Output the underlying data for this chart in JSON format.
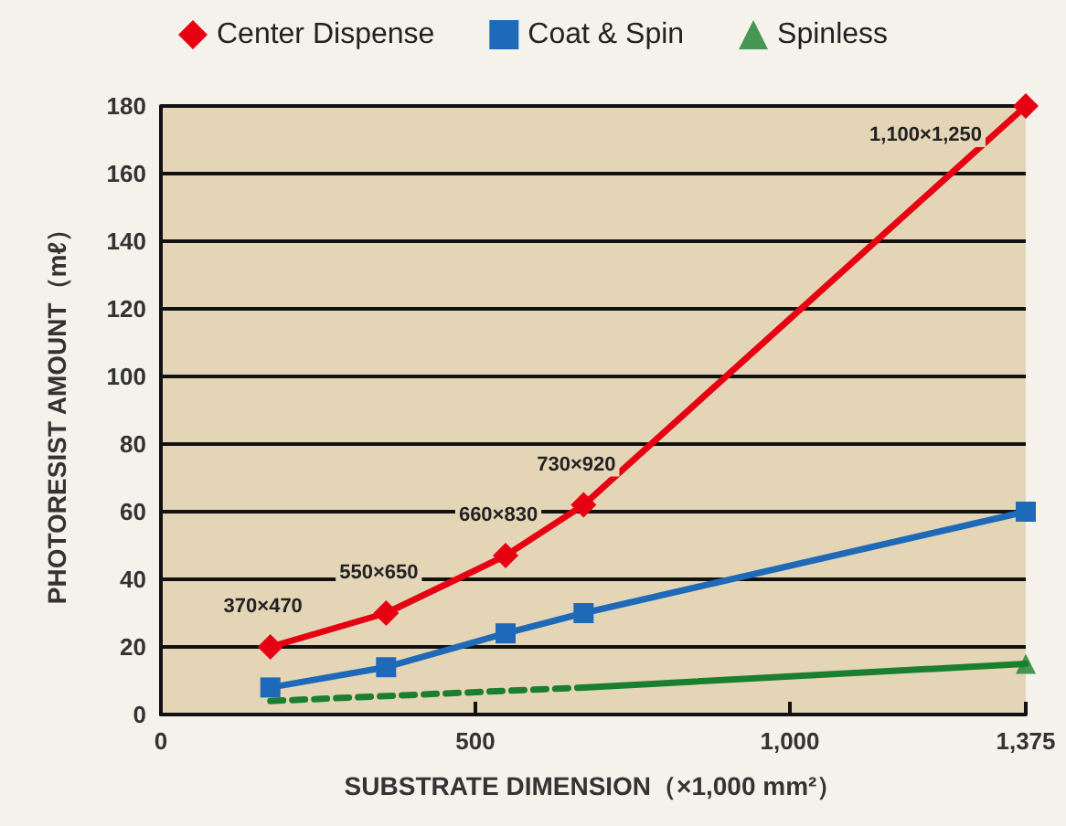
{
  "chart_data": {
    "type": "line",
    "xlabel": "SUBSTRATE DIMENSION（×1,000 mm²）",
    "ylabel": "PHOTORESIST AMOUNT（mℓ）",
    "series": [
      {
        "name": "Center Dispense",
        "color": "#e60012",
        "marker": "diamond",
        "x": [
          174,
          358,
          548,
          672,
          1375
        ],
        "values": [
          20,
          30,
          47,
          62,
          180
        ]
      },
      {
        "name": "Coat & Spin",
        "color": "#1e6ab8",
        "marker": "square",
        "x": [
          174,
          358,
          548,
          672,
          1375
        ],
        "values": [
          8,
          14,
          24,
          30,
          60
        ]
      },
      {
        "color": "#1a7f2e",
        "marker": "none",
        "line_style": "dashed",
        "x": [
          174,
          672
        ],
        "values": [
          4,
          8
        ]
      },
      {
        "color": "#1a7f2e",
        "marker": "none",
        "x": [
          672,
          1375
        ],
        "values": [
          8,
          15
        ]
      },
      {
        "name": "Spinless",
        "type": "scatter",
        "color": "#1a7f2e",
        "marker": "triangle",
        "x": [
          1375
        ],
        "values": [
          15
        ]
      }
    ],
    "annotations": [
      {
        "text": "370×470",
        "x": 174,
        "y": 20
      },
      {
        "text": "550×650",
        "x": 358,
        "y": 30
      },
      {
        "text": "660×830",
        "x": 548,
        "y": 47
      },
      {
        "text": "730×920",
        "x": 672,
        "y": 62
      },
      {
        "text": "1,100×1,250",
        "x": 1375,
        "y": 180
      }
    ],
    "xlim": [
      0,
      1375
    ],
    "xticks": [
      0,
      500,
      {
        "value": 1000,
        "label": "1,000"
      },
      {
        "value": 1375,
        "label": "1,375"
      }
    ],
    "ylim": [
      0,
      180
    ],
    "yticks": [
      0,
      20,
      40,
      60,
      80,
      100,
      120,
      140,
      160,
      180
    ],
    "grid": "y",
    "legend": "top",
    "line_style": "solid"
  }
}
